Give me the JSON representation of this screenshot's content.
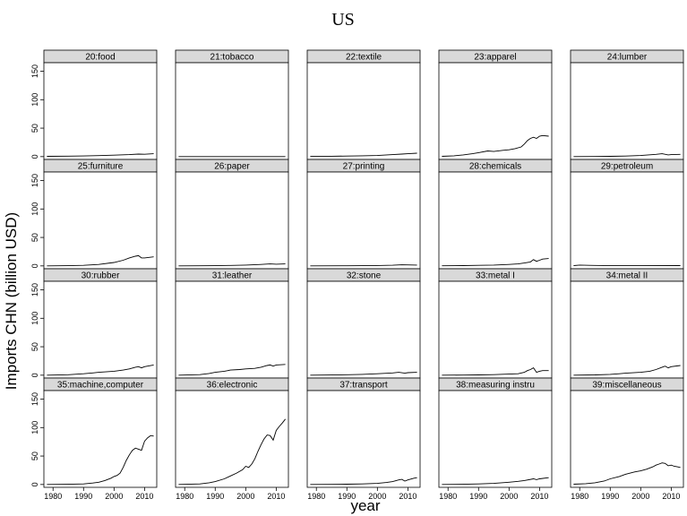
{
  "chart_data": {
    "type": "line",
    "title": "US",
    "xlabel": "year",
    "ylabel": "Imports CHN (billion USD)",
    "xlim": [
      1977,
      2014
    ],
    "ylim": [
      -5,
      165
    ],
    "xticks": [
      1980,
      1990,
      2000,
      2010
    ],
    "yticks": [
      0,
      50,
      100,
      150
    ],
    "grid": false,
    "facets": [
      {
        "name": "20:food",
        "x": [
          1978,
          1985,
          1990,
          1995,
          2000,
          2005,
          2008,
          2010,
          2013
        ],
        "y": [
          0.5,
          0.8,
          1.2,
          1.8,
          2.5,
          3.5,
          4.5,
          4.2,
          5
        ]
      },
      {
        "name": "21:tobacco",
        "x": [
          1978,
          1990,
          2000,
          2013
        ],
        "y": [
          0,
          0,
          0,
          0.1
        ]
      },
      {
        "name": "22:textile",
        "x": [
          1978,
          1985,
          1990,
          1995,
          2000,
          2005,
          2008,
          2010,
          2013
        ],
        "y": [
          0.3,
          0.6,
          1,
          1.5,
          2,
          3.5,
          4.5,
          5,
          6
        ]
      },
      {
        "name": "23:apparel",
        "x": [
          1978,
          1982,
          1985,
          1988,
          1990,
          1993,
          1995,
          1998,
          2000,
          2002,
          2004,
          2005,
          2006,
          2007,
          2008,
          2009,
          2010,
          2011,
          2013
        ],
        "y": [
          0.5,
          1.5,
          3,
          5,
          7,
          10,
          9,
          11,
          12,
          14,
          17,
          22,
          28,
          32,
          34,
          32,
          36,
          37,
          36
        ]
      },
      {
        "name": "24:lumber",
        "x": [
          1978,
          1985,
          1990,
          1995,
          2000,
          2005,
          2007,
          2009,
          2010,
          2013
        ],
        "y": [
          0,
          0.2,
          0.5,
          1,
          2,
          4,
          5,
          3,
          3.5,
          4
        ]
      },
      {
        "name": "25:furniture",
        "x": [
          1978,
          1985,
          1990,
          1995,
          2000,
          2003,
          2005,
          2007,
          2008,
          2009,
          2010,
          2013
        ],
        "y": [
          0,
          0.3,
          1,
          2.5,
          6,
          10,
          14,
          17,
          18,
          14,
          14,
          16
        ]
      },
      {
        "name": "26:paper",
        "x": [
          1978,
          1985,
          1990,
          1995,
          2000,
          2005,
          2008,
          2010,
          2013
        ],
        "y": [
          0,
          0.2,
          0.4,
          0.8,
          1.5,
          2.5,
          3.5,
          3,
          3.5
        ]
      },
      {
        "name": "27:printing",
        "x": [
          1978,
          1990,
          2000,
          2005,
          2008,
          2013
        ],
        "y": [
          0,
          0.2,
          0.6,
          1.2,
          2,
          1.5
        ]
      },
      {
        "name": "28:chemicals",
        "x": [
          1978,
          1985,
          1990,
          1995,
          2000,
          2003,
          2005,
          2007,
          2008,
          2009,
          2010,
          2011,
          2013
        ],
        "y": [
          0.2,
          0.5,
          1,
          1.5,
          2.5,
          3.5,
          5,
          7,
          11,
          8,
          10,
          12,
          13
        ]
      },
      {
        "name": "29:petroleum",
        "x": [
          1978,
          1980,
          1983,
          1985,
          1990,
          2000,
          2013
        ],
        "y": [
          0.5,
          1.5,
          1,
          0.8,
          0.4,
          0.3,
          0.5
        ]
      },
      {
        "name": "30:rubber",
        "x": [
          1978,
          1985,
          1990,
          1993,
          1995,
          2000,
          2003,
          2005,
          2007,
          2008,
          2009,
          2010,
          2013
        ],
        "y": [
          0,
          0.8,
          2.5,
          4,
          5,
          7,
          9,
          11,
          14,
          15,
          13,
          15,
          18
        ]
      },
      {
        "name": "31:leather",
        "x": [
          1978,
          1985,
          1988,
          1990,
          1993,
          1995,
          1998,
          2000,
          2003,
          2005,
          2007,
          2008,
          2009,
          2010,
          2013
        ],
        "y": [
          0,
          1,
          3,
          5,
          7,
          9,
          10,
          11,
          12,
          14,
          17,
          18,
          16,
          18,
          19
        ]
      },
      {
        "name": "32:stone",
        "x": [
          1978,
          1985,
          1990,
          1995,
          2000,
          2005,
          2007,
          2009,
          2010,
          2013
        ],
        "y": [
          0,
          0.3,
          0.8,
          1.5,
          2.5,
          4,
          5,
          3.5,
          4.5,
          5
        ]
      },
      {
        "name": "33:metal I",
        "x": [
          1978,
          1985,
          1990,
          1995,
          2000,
          2003,
          2005,
          2006,
          2007,
          2008,
          2009,
          2010,
          2011,
          2013
        ],
        "y": [
          0,
          0.2,
          0.5,
          1,
          2,
          2.5,
          5,
          8,
          10,
          13,
          5,
          7,
          8,
          8
        ]
      },
      {
        "name": "34:metal II",
        "x": [
          1978,
          1985,
          1990,
          1993,
          1995,
          2000,
          2003,
          2005,
          2007,
          2008,
          2009,
          2010,
          2013
        ],
        "y": [
          0,
          0.5,
          1.5,
          2.5,
          3.5,
          5,
          7,
          10,
          14,
          16,
          13,
          15,
          17
        ]
      },
      {
        "name": "35:machine,computer",
        "x": [
          1978,
          1985,
          1990,
          1993,
          1995,
          1997,
          1999,
          2000,
          2001,
          2002,
          2003,
          2004,
          2005,
          2006,
          2007,
          2008,
          2009,
          2010,
          2011,
          2012,
          2013
        ],
        "y": [
          0,
          0.3,
          1,
          2.5,
          4,
          7,
          11,
          14,
          16,
          20,
          30,
          42,
          52,
          60,
          64,
          62,
          60,
          76,
          82,
          86,
          85
        ]
      },
      {
        "name": "36:electronic",
        "x": [
          1978,
          1985,
          1988,
          1990,
          1993,
          1995,
          1997,
          1999,
          2000,
          2001,
          2002,
          2003,
          2004,
          2005,
          2006,
          2007,
          2008,
          2009,
          2010,
          2011,
          2012,
          2013
        ],
        "y": [
          0,
          1,
          3,
          5,
          10,
          15,
          20,
          26,
          32,
          30,
          36,
          45,
          58,
          70,
          80,
          87,
          86,
          78,
          95,
          102,
          108,
          115
        ]
      },
      {
        "name": "37:transport",
        "x": [
          1978,
          1985,
          1990,
          1995,
          2000,
          2003,
          2005,
          2007,
          2008,
          2009,
          2010,
          2012,
          2013
        ],
        "y": [
          0,
          0.2,
          0.5,
          1,
          2,
          3.5,
          5,
          8,
          9,
          6,
          8,
          11,
          12
        ]
      },
      {
        "name": "38:measuring instru",
        "x": [
          1978,
          1985,
          1990,
          1995,
          2000,
          2003,
          2005,
          2008,
          2009,
          2010,
          2013
        ],
        "y": [
          0,
          0.3,
          1,
          2,
          4,
          5.5,
          7,
          10,
          8.5,
          10,
          12
        ]
      },
      {
        "name": "39:miscellaneous",
        "x": [
          1978,
          1982,
          1985,
          1988,
          1990,
          1993,
          1995,
          1998,
          2000,
          2002,
          2004,
          2005,
          2006,
          2007,
          2008,
          2009,
          2010,
          2011,
          2012,
          2013
        ],
        "y": [
          0.5,
          1.5,
          3,
          6,
          10,
          14,
          18,
          22,
          24,
          27,
          31,
          34,
          36,
          38,
          37,
          33,
          34,
          32,
          31,
          30
        ]
      }
    ]
  }
}
